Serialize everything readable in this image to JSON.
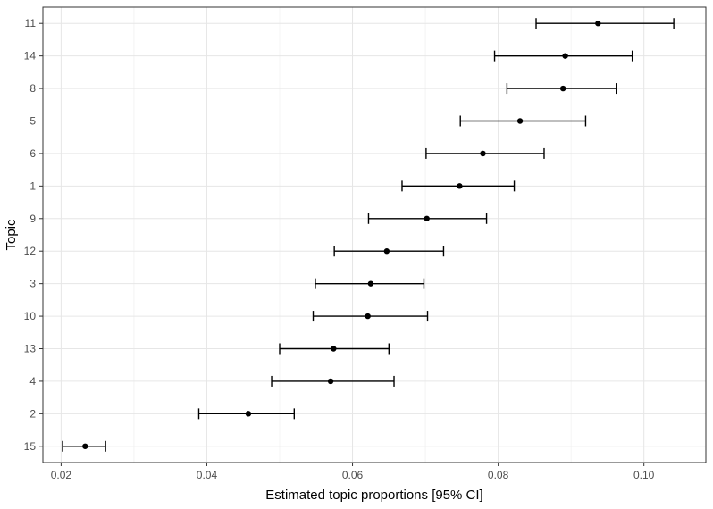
{
  "chart_data": {
    "type": "errorbar",
    "title": "",
    "xlabel": "Estimated topic proportions [95% CI]",
    "ylabel": "Topic",
    "xlim": [
      0.0175,
      0.1085
    ],
    "xticks": [
      "0.02",
      "0.04",
      "0.06",
      "0.08",
      "0.10"
    ],
    "grid": true,
    "categories": [
      "11",
      "14",
      "8",
      "5",
      "6",
      "1",
      "9",
      "12",
      "3",
      "10",
      "13",
      "4",
      "2",
      "15"
    ],
    "estimate": [
      0.0937,
      0.0892,
      0.0889,
      0.083,
      0.0779,
      0.0747,
      0.0702,
      0.0647,
      0.0625,
      0.0621,
      0.0574,
      0.057,
      0.0457,
      0.0233
    ],
    "lower": [
      0.0852,
      0.0795,
      0.0812,
      0.0748,
      0.0701,
      0.0668,
      0.0622,
      0.0575,
      0.0549,
      0.0546,
      0.05,
      0.0489,
      0.0389,
      0.0202
    ],
    "upper": [
      0.1041,
      0.0984,
      0.0962,
      0.092,
      0.0863,
      0.0822,
      0.0784,
      0.0725,
      0.0698,
      0.0703,
      0.065,
      0.0657,
      0.052,
      0.0261
    ]
  }
}
